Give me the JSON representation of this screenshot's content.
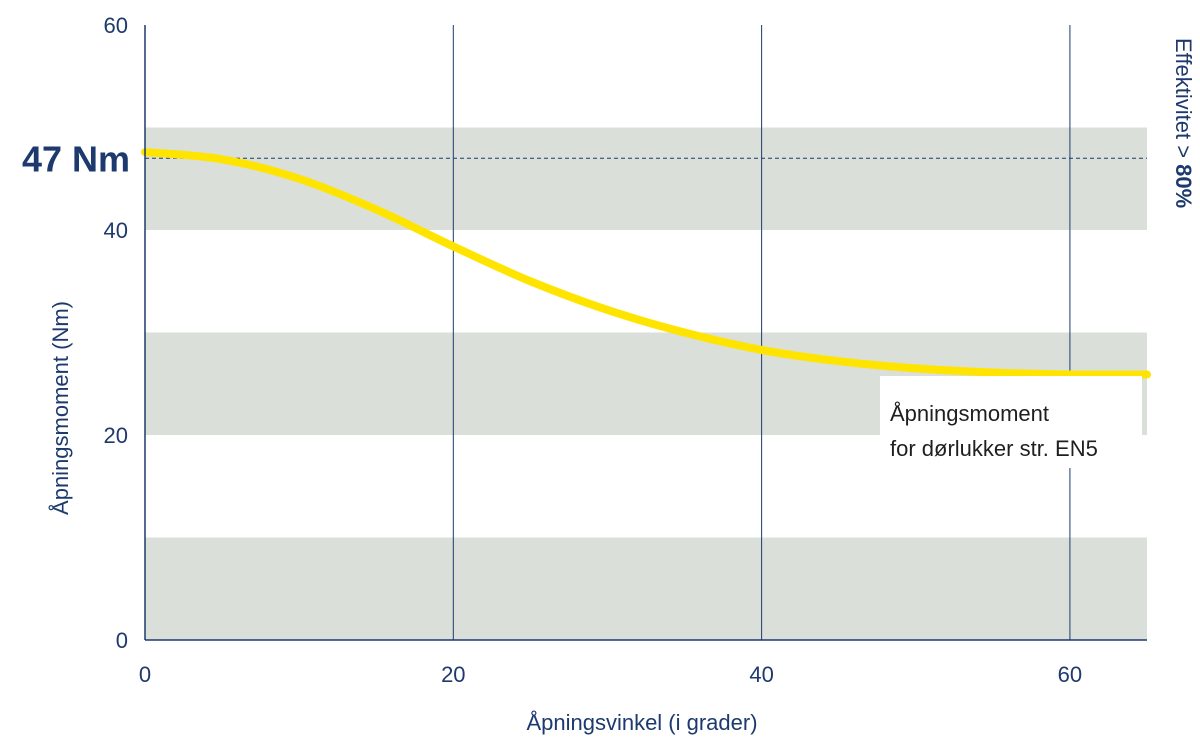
{
  "chart_data": {
    "type": "line",
    "title": "",
    "xlabel": "Åpningsvinkel (i grader)",
    "ylabel": "Åpningsmoment (Nm)",
    "xlim": [
      0,
      65
    ],
    "ylim": [
      0,
      60
    ],
    "x_ticks": [
      0,
      20,
      40,
      60
    ],
    "y_ticks": [
      0,
      20,
      40,
      60
    ],
    "x_tick_labels": [
      "0",
      "20",
      "40",
      "60"
    ],
    "y_tick_labels": [
      "0",
      "20",
      "40",
      "60"
    ],
    "vertical_gridlines_at": [
      20,
      40,
      60
    ],
    "shaded_bands": [
      {
        "from": 0,
        "to": 10
      },
      {
        "from": 20,
        "to": 30
      },
      {
        "from": 40,
        "to": 50
      }
    ],
    "reference_line": {
      "y": 47,
      "label": "47 Nm",
      "style": "dashed"
    },
    "right_label": {
      "text": "Effektivitet > ",
      "bold": "80%"
    },
    "annotation": {
      "line1": "Åpningsmoment",
      "line2": "for dørlukker str. EN5"
    },
    "series": [
      {
        "x": [
          0,
          5,
          10,
          15,
          20,
          25,
          30,
          35,
          40,
          45,
          50,
          55,
          60,
          65
        ],
        "values": [
          47.6,
          46.9,
          45.0,
          42.0,
          38.4,
          35.0,
          32.2,
          30.0,
          28.3,
          27.2,
          26.5,
          26.1,
          25.9,
          25.9
        ]
      }
    ],
    "colors": {
      "axis": "#1d3a6e",
      "text": "#1d3a6e",
      "band": "#dadfd9",
      "curve": "#ffe400",
      "annotation": "#1f1f1f"
    }
  }
}
